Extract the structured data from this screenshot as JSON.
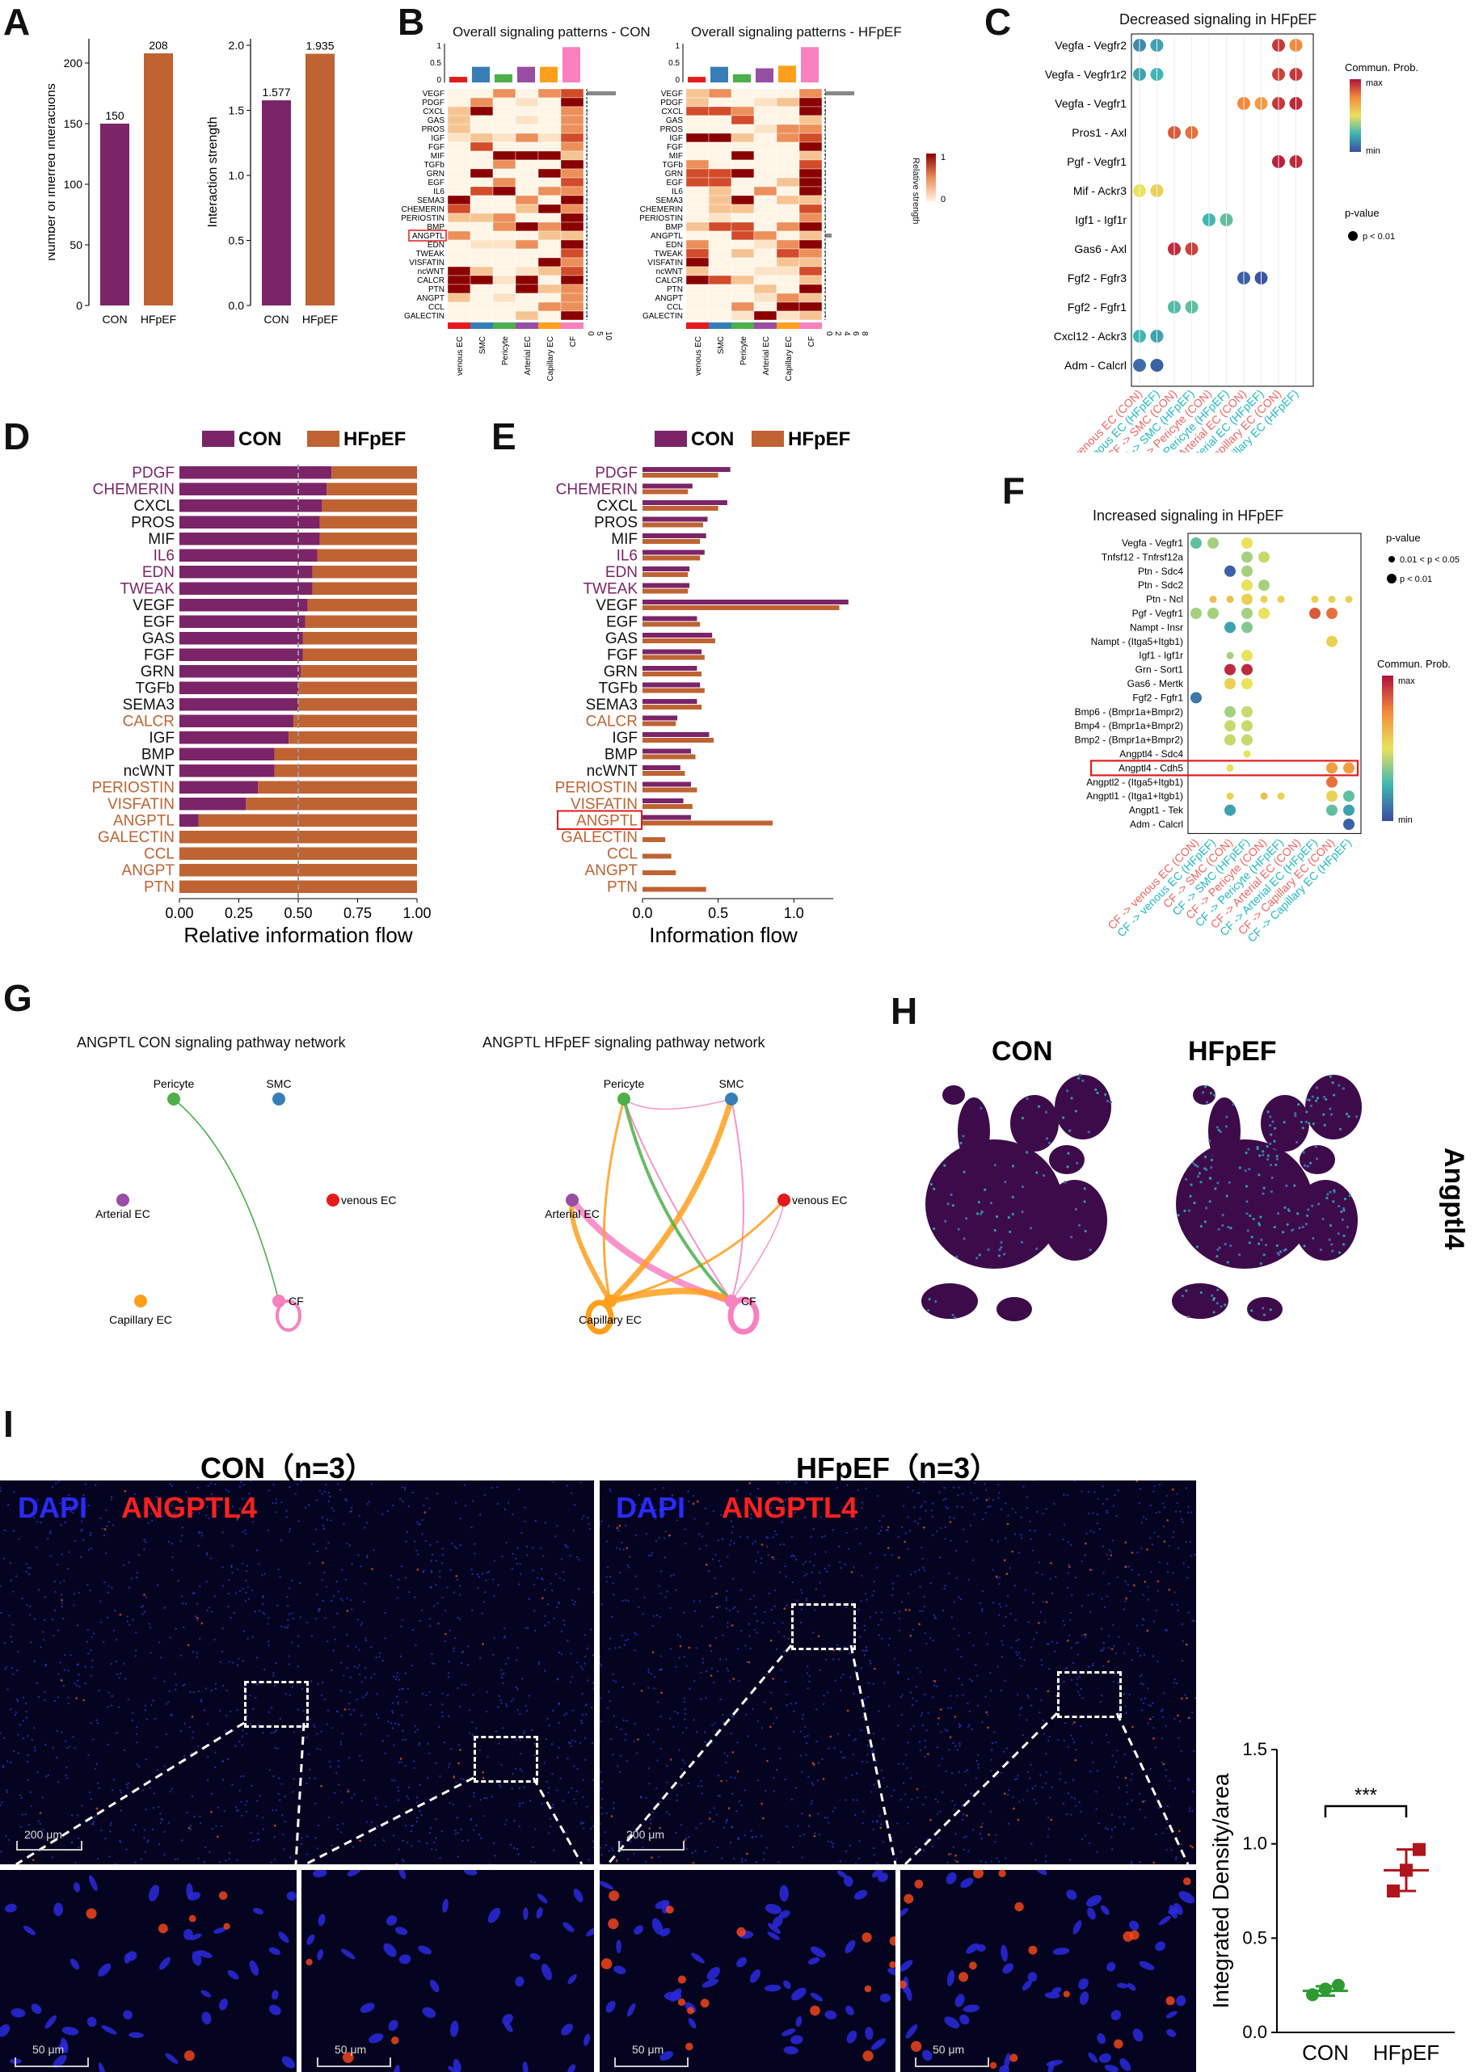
{
  "panels": {
    "A": "A",
    "B": "B",
    "C": "C",
    "D": "D",
    "E": "E",
    "F": "F",
    "G": "G",
    "H": "H",
    "I": "I"
  },
  "colors": {
    "con": "#7B2468",
    "hfpef": "#BF6333",
    "hl": "#E41A1C"
  },
  "panelA": {
    "chart1": {
      "type": "bar",
      "ylabel": "Number of inferred interactions",
      "categories": [
        "CON",
        "HFpEF"
      ],
      "values": [
        150,
        208
      ],
      "labels": [
        "150",
        "208"
      ],
      "ylim": [
        0,
        220
      ],
      "ticks": [
        0,
        50,
        100,
        150,
        200
      ]
    },
    "chart2": {
      "type": "bar",
      "ylabel": "Interaction strength",
      "categories": [
        "CON",
        "HFpEF"
      ],
      "values": [
        1.577,
        1.935
      ],
      "labels": [
        "1.577",
        "1.935"
      ],
      "ylim": [
        0,
        2.05
      ],
      "ticks": [
        "0.0",
        "0.5",
        "1.0",
        "1.5",
        "2.0"
      ]
    }
  },
  "panelB": {
    "title_con": "Overall signaling patterns - CON",
    "title_hfpef": "Overall signaling patterns - HFpEF",
    "pathways": [
      "VEGF",
      "PDGF",
      "CXCL",
      "GAS",
      "PROS",
      "IGF",
      "FGF",
      "MIF",
      "TGFb",
      "GRN",
      "EGF",
      "IL6",
      "SEMA3",
      "CHEMERIN",
      "PERIOSTIN",
      "BMP",
      "ANGPTL",
      "EDN",
      "TWEAK",
      "VISFATIN",
      "ncWNT",
      "CALCR",
      "PTN",
      "ANGPT",
      "CCL",
      "GALECTIN"
    ],
    "cells": [
      "venous EC",
      "SMC",
      "Pericyte",
      "Arterial EC",
      "Capillary EC",
      "CF"
    ],
    "cell_colors": [
      "#E41A1C",
      "#377EB8",
      "#4DAF4A",
      "#984EA3",
      "#FF9F1C",
      "#F781BF"
    ],
    "legend_title": "Relative strength",
    "legend_max": "1",
    "legend_min": "0",
    "top_ticks": [
      "1",
      "0.5",
      "0"
    ],
    "right_ticks_con": [
      "0",
      "5",
      "10"
    ],
    "right_ticks_hfpef": [
      "0",
      "2",
      "4",
      "6",
      "8"
    ]
  },
  "panelC": {
    "title": "Decreased signaling in HFpEF",
    "pairs": [
      "Vegfa  - Vegfr2",
      "Vegfa  - Vegfr1r2",
      "Vegfa  - Vegfr1",
      "Pros1  - Axl",
      "Pgf  - Vegfr1",
      "Mif  - Ackr3",
      "Igf1  - Igf1r",
      "Gas6  - Axl",
      "Fgf2  - Fgfr3",
      "Fgf2  - Fgfr1",
      "Cxcl12  - Ackr3",
      "Adm  - Calcrl"
    ],
    "columns": [
      "CF -> venous EC (CON)",
      "CF -> venous EC (HFpEF)",
      "CF -> SMC (CON)",
      "CF -> SMC (HFpEF)",
      "CF -> Pericyte (CON)",
      "CF -> Pericyte (HFpEF)",
      "CF -> Arterial EC (CON)",
      "CF -> Arterial EC (HFpEF)",
      "CF -> Capillary EC (CON)",
      "CF -> Capillary EC (HFpEF)"
    ],
    "legend_title": "Commun. Prob.",
    "legend_max": "max",
    "legend_min": "min",
    "pvalue_title": "p-value",
    "pvalue_label": "p < 0.01"
  },
  "panelD": {
    "legend": [
      "CON",
      "HFpEF"
    ],
    "xlabel": "Relative information flow",
    "xticks": [
      "0.00",
      "0.25",
      "0.50",
      "0.75",
      "1.00"
    ],
    "pathways": [
      "PDGF",
      "CHEMERIN",
      "CXCL",
      "PROS",
      "MIF",
      "IL6",
      "EDN",
      "TWEAK",
      "VEGF",
      "EGF",
      "GAS",
      "FGF",
      "GRN",
      "TGFb",
      "SEMA3",
      "CALCR",
      "IGF",
      "BMP",
      "ncWNT",
      "PERIOSTIN",
      "VISFATIN",
      "ANGPTL",
      "GALECTIN",
      "CCL",
      "ANGPT",
      "PTN"
    ],
    "label_group": [
      "con",
      "con",
      "n",
      "n",
      "n",
      "con",
      "con",
      "con",
      "n",
      "n",
      "n",
      "n",
      "n",
      "n",
      "n",
      "hf",
      "n",
      "n",
      "n",
      "hf",
      "hf",
      "hf",
      "hf",
      "hf",
      "hf",
      "hf"
    ],
    "con_fraction": [
      0.64,
      0.62,
      0.6,
      0.59,
      0.59,
      0.58,
      0.56,
      0.56,
      0.54,
      0.53,
      0.52,
      0.52,
      0.51,
      0.5,
      0.5,
      0.48,
      0.46,
      0.4,
      0.4,
      0.33,
      0.28,
      0.08,
      0,
      0,
      0,
      0
    ]
  },
  "panelE": {
    "legend": [
      "CON",
      "HFpEF"
    ],
    "xlabel": "Information flow",
    "xticks": [
      "0.0",
      "0.5",
      "1.0"
    ],
    "con": [
      0.58,
      0.33,
      0.56,
      0.43,
      0.42,
      0.41,
      0.31,
      0.31,
      1.36,
      0.36,
      0.46,
      0.39,
      0.36,
      0.38,
      0.36,
      0.23,
      0.44,
      0.32,
      0.25,
      0.32,
      0.27,
      0.32,
      0,
      0,
      0,
      0
    ],
    "hfpef": [
      0.5,
      0.3,
      0.5,
      0.4,
      0.38,
      0.38,
      0.3,
      0.3,
      1.3,
      0.38,
      0.48,
      0.41,
      0.39,
      0.41,
      0.39,
      0.22,
      0.47,
      0.35,
      0.28,
      0.36,
      0.33,
      0.86,
      0.15,
      0.19,
      0.22,
      0.42
    ]
  },
  "panelF": {
    "title": "Increased signaling in HFpEF",
    "pairs": [
      "Vegfa  - Vegfr1",
      "Tnfsf12  - Tnfrsf12a",
      "Ptn  - Sdc4",
      "Ptn  - Sdc2",
      "Ptn  - Ncl",
      "Pgf  - Vegfr1",
      "Nampt  - Insr",
      "Nampt  - (Itga5+Itgb1)",
      "Igf1  - Igf1r",
      "Grn  - Sort1",
      "Gas6  - Mertk",
      "Fgf2  - Fgfr1",
      "Bmp6  - (Bmpr1a+Bmpr2)",
      "Bmp4  - (Bmpr1a+Bmpr2)",
      "Bmp2  - (Bmpr1a+Bmpr2)",
      "Angptl4  - Sdc4",
      "Angptl4  - Cdh5",
      "Angptl2  - (Itga5+Itgb1)",
      "Angptl1  - (Itga1+Itgb1)",
      "Angpt1  - Tek",
      "Adm  - Calcrl"
    ],
    "columns": [
      "CF -> venous EC (CON)",
      "CF -> venous EC (HFpEF)",
      "CF -> SMC (CON)",
      "CF -> SMC (HFpEF)",
      "CF -> Pericyte (CON)",
      "CF -> Pericyte (HFpEF)",
      "CF -> Arterial EC (CON)",
      "CF -> Arterial EC (HFpEF)",
      "CF -> Capillary EC (CON)",
      "CF -> Capillary EC (HFpEF)"
    ],
    "pvalue_title": "p-value",
    "pvalue_labels": [
      "0.01 < p < 0.05",
      "p < 0.01"
    ],
    "legend_title": "Commun. Prob.",
    "legend_max": "max",
    "legend_min": "min"
  },
  "panelG": {
    "title_con": "ANGPTL CON signaling pathway network",
    "title_hfpef": "ANGPTL HFpEF signaling pathway network",
    "nodes": [
      "Pericyte",
      "SMC",
      "Arterial EC",
      "venous EC",
      "Capillary EC",
      "CF"
    ]
  },
  "panelH": {
    "title_con": "CON",
    "title_hfpef": "HFpEF",
    "gene": "Angptl4"
  },
  "panelI": {
    "title_con": "CON（n=3）",
    "title_hfpef": "HFpEF（n=3）",
    "stain_dapi": "DAPI",
    "stain_angptl4": "ANGPTL4",
    "scale_large": "200 μm",
    "scale_small": "50 μm",
    "chart": {
      "type": "scatter",
      "ylabel": "Integrated Density/area",
      "categories": [
        "CON",
        "HFpEF"
      ],
      "con_points": [
        0.2,
        0.23,
        0.25
      ],
      "hfpef_points": [
        0.75,
        0.86,
        0.97
      ],
      "con_mean": 0.22,
      "hfpef_mean": 0.86,
      "ylim": [
        0,
        1.5
      ],
      "yticks": [
        "0.0",
        "0.5",
        "1.0",
        "1.5"
      ],
      "significance": "***"
    }
  }
}
